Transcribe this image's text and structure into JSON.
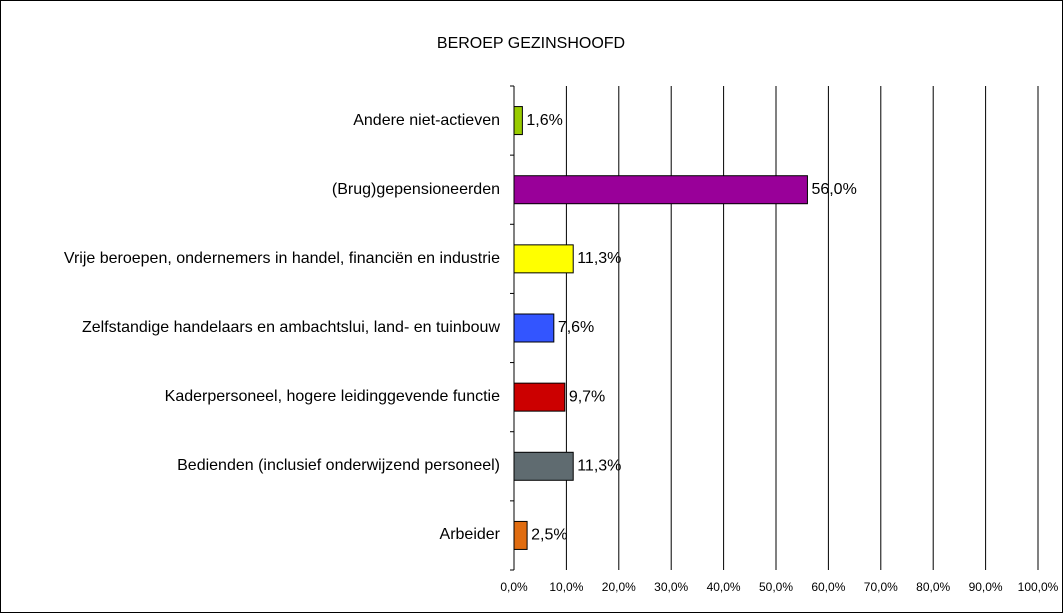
{
  "chart_data": {
    "type": "bar",
    "orientation": "horizontal",
    "title": "BEROEP GEZINSHOOFD",
    "categories": [
      "Andere niet-actieven",
      "(Brug)gepensioneerden",
      "Vrije beroepen, ondernemers in handel, financiën en industrie",
      "Zelfstandige handelaars en ambachtslui, land- en tuinbouw",
      "Kaderpersoneel, hogere leidinggevende functie",
      "Bedienden (inclusief onderwijzend personeel)",
      "Arbeider"
    ],
    "values": [
      1.6,
      56.0,
      11.3,
      7.6,
      9.7,
      11.3,
      2.5
    ],
    "value_labels": [
      "1,6%",
      "56,0%",
      "11,3%",
      "7,6%",
      "9,7%",
      "11,3%",
      "2,5%"
    ],
    "colors": [
      "#99cc00",
      "#990099",
      "#ffff00",
      "#3355ff",
      "#cc0000",
      "#5f6b70",
      "#e06c10"
    ],
    "xlim": [
      0,
      100
    ],
    "xticks": [
      {
        "value": 0,
        "label": "0,0%"
      },
      {
        "value": 10,
        "label": "10,0%"
      },
      {
        "value": 20,
        "label": "20,0%"
      },
      {
        "value": 30,
        "label": "30,0%"
      },
      {
        "value": 40,
        "label": "40,0%"
      },
      {
        "value": 50,
        "label": "50,0%"
      },
      {
        "value": 60,
        "label": "60,0%"
      },
      {
        "value": 70,
        "label": "70,0%"
      },
      {
        "value": 80,
        "label": "80,0%"
      },
      {
        "value": 90,
        "label": "90,0%"
      },
      {
        "value": 100,
        "label": "100,0%"
      }
    ],
    "grid": true
  }
}
